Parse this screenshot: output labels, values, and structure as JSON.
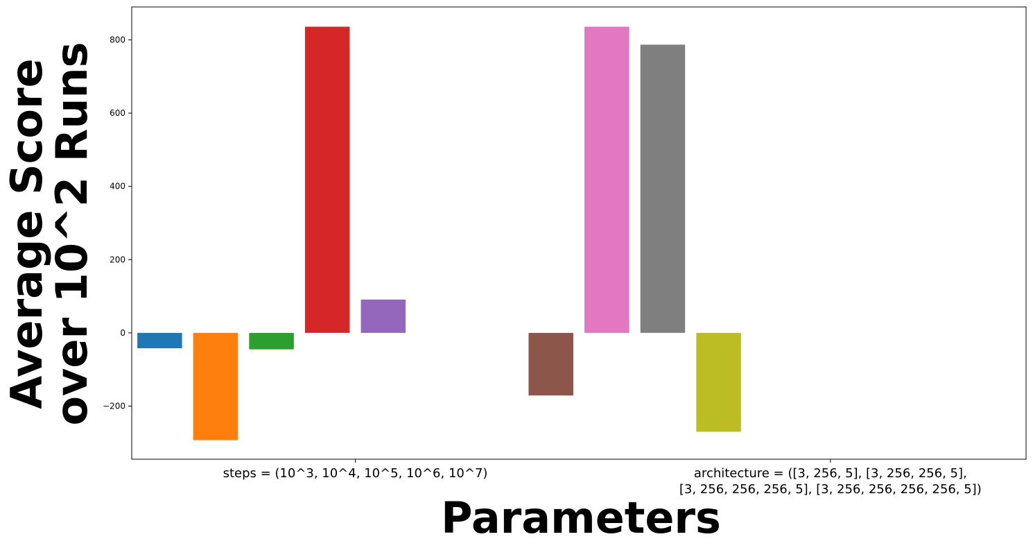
{
  "chart_data": {
    "type": "bar",
    "title": "",
    "xlabel": "Parameters",
    "ylabel": [
      "Average Score",
      "over 10^2 Runs"
    ],
    "ylim": [
      -345,
      890
    ],
    "yticks": [
      -200,
      0,
      200,
      400,
      600,
      800
    ],
    "ytick_labels": [
      "−200",
      "0",
      "200",
      "400",
      "600",
      "800"
    ],
    "grid": false,
    "legend": "none",
    "xtick_positions": [
      3.5,
      12.0
    ],
    "xlim": [
      -0.5,
      15.5
    ],
    "xtick_labels": [
      [
        "steps = (10^3, 10^4, 10^5, 10^6, 10^7)"
      ],
      [
        "architecture = ([3, 256, 5], [3, 256, 256, 5],",
        "[3, 256, 256, 256, 5], [3, 256, 256, 256, 256, 5])"
      ]
    ],
    "series": [
      {
        "x": 0,
        "value": -42,
        "color": "#1f77b4"
      },
      {
        "x": 1,
        "value": -293,
        "color": "#ff7f0e"
      },
      {
        "x": 2,
        "value": -45,
        "color": "#2ca02c"
      },
      {
        "x": 3,
        "value": 836,
        "color": "#d62728"
      },
      {
        "x": 4,
        "value": 91,
        "color": "#9467bd"
      },
      {
        "x": 7,
        "value": -171,
        "color": "#8c564b"
      },
      {
        "x": 8,
        "value": 836,
        "color": "#e377c2"
      },
      {
        "x": 9,
        "value": 787,
        "color": "#7f7f7f"
      },
      {
        "x": 10,
        "value": -270,
        "color": "#bcbd22"
      }
    ]
  }
}
